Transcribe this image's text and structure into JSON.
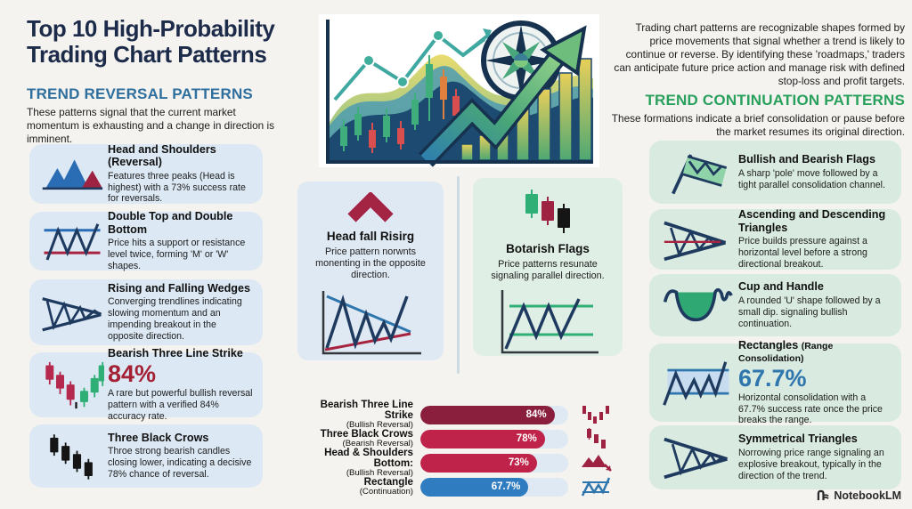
{
  "page": {
    "title": "Top 10 High-Probability Trading Chart Patterns"
  },
  "left_section": {
    "heading": "TREND REVERSAL PATTERNS",
    "description": "These patterns signal that the current market momentum is exhausting and a change in direction is imminent.",
    "cards": [
      {
        "icon": "head-and-shoulders-icon",
        "title": "Head and Shoulders (Reversal)",
        "description": "Features three peaks (Head is highest) with a 73% success rate for reversals."
      },
      {
        "icon": "double-top-bottom-icon",
        "title": "Double Top and Double Bottom",
        "description": "Price hits a support or resistance level twice, forming 'M' or 'W' shapes."
      },
      {
        "icon": "wedge-icon",
        "title": "Rising and Falling Wedges",
        "description": "Converging trendlines indicating slowing momentum and an impending breakout in the opposite direction."
      },
      {
        "icon": "three-line-strike-icon",
        "title": "Bearish Three Line Strike",
        "stat": "84%",
        "description": "A rare but powerful bullish reversal pattern with a verified 84% accuracy rate."
      },
      {
        "icon": "three-black-crows-icon",
        "title": "Three Black Crows",
        "description": "Throe strong bearish candles closing lower, indicating a decisive 78% chance of reversal."
      }
    ]
  },
  "center_section": {
    "cards": [
      {
        "icon": "chevron-up-icon",
        "title": "Head fall Risirg",
        "description": "Price pattern norwnts monenting in the opposite direction."
      },
      {
        "icon": "three-candles-icon",
        "title": "Botarish Flags",
        "description": "Price patterns resunate signaling parallel direction."
      }
    ]
  },
  "right_section": {
    "intro": "Trading chart patterns are recognizable shapes formed by price movements that signal whether a trend is likely to continue or reverse. By identifying these 'roadmaps,' traders can anticipate future price action and manage risk with defined stop-loss and profit targets.",
    "heading": "TREND CONTINUATION PATTERNS",
    "description": "These formations indicate a brief consolidation or pause before the market resumes its original direction.",
    "cards": [
      {
        "icon": "flag-icon",
        "title": "Bullish and Bearish Flags",
        "description": "A sharp 'pole' move followed by a tight parallel consolidation channel."
      },
      {
        "icon": "ascending-descending-triangles-icon",
        "title": "Ascending and Descending Triangles",
        "description": "Price builds pressure against a horizontal level before a strong directional breakout."
      },
      {
        "icon": "cup-and-handle-icon",
        "title": "Cup and Handle",
        "description": "A rounded 'U' shape followed by a small dip. signaling bullish continuation."
      },
      {
        "icon": "rectangles-icon",
        "title": "Rectangles",
        "title_suffix": "(Range Consolidation)",
        "stat": "67.7%",
        "description": "Horizontal consolidation with a 67.7% success rate once the price breaks the range."
      },
      {
        "icon": "symmetrical-triangles-icon",
        "title": "Symmetrical Triangles",
        "description": "Norrowing price range signaling an explosive breakout, typically in the direction of the trend."
      }
    ]
  },
  "chart_data": {
    "type": "bar",
    "orientation": "horizontal",
    "categories": [
      "Bearish Three Line Strike",
      "Three Black Crows",
      "Head & Shoulders Bottom:",
      "Rectangle"
    ],
    "category_subtitles": [
      "(Bullish Reversal)",
      "(Bearish Reversal)",
      "(Bullish Reversal)",
      "(Continuation)"
    ],
    "values": [
      84,
      78,
      73,
      67.7
    ],
    "value_labels": [
      "84%",
      "78%",
      "73%",
      "67.7%"
    ],
    "bar_colors": [
      "#8a1e3d",
      "#bf2349",
      "#bf2349",
      "#2f7cc0"
    ],
    "track_color": "#dfe9f4",
    "xlim": [
      0,
      100
    ],
    "row_icons": [
      "candles-v-icon",
      "candles-down-icon",
      "peaks-arrow-icon",
      "rectangle-zigzag-icon"
    ]
  },
  "footer": {
    "brand": "NotebookLM"
  },
  "colors": {
    "background": "#f4f3ef",
    "title_navy": "#1c2b4a",
    "reversal_heading_blue": "#2e6f9e",
    "continuation_heading_green": "#2aa05d",
    "card_blue_bg": "#dce9f5",
    "card_mint_bg": "#d9ebe0",
    "stat_red": "#a32035",
    "stat_blue": "#2e76ad",
    "chart_navy": "#1f3a5f",
    "candle_green": "#2fae76",
    "candle_red": "#b5294e"
  }
}
